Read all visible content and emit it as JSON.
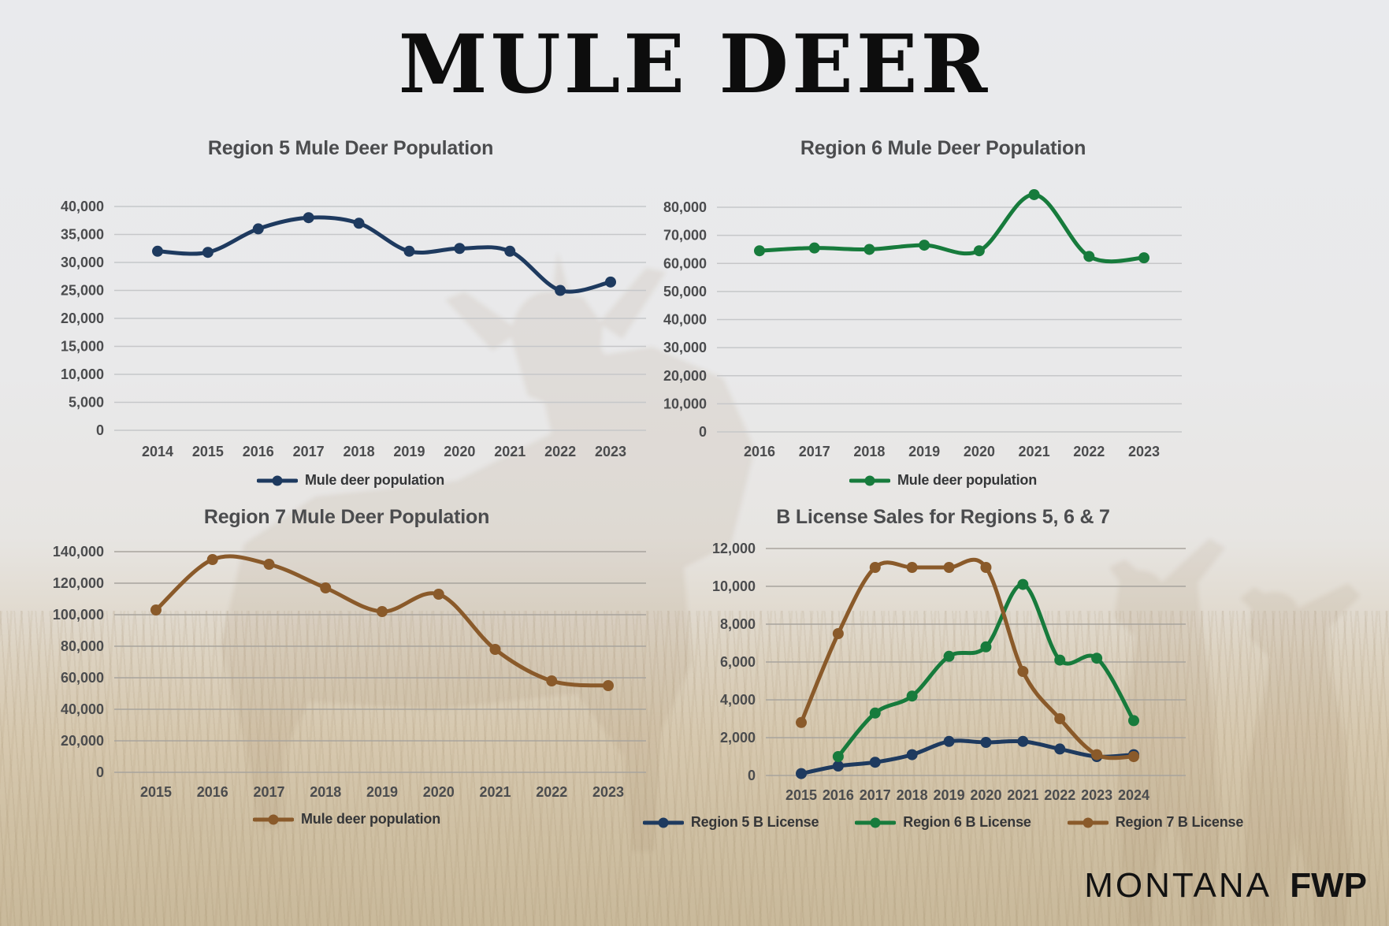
{
  "page": {
    "title": "MULE DEER",
    "brand": {
      "light": "MONTANA",
      "bold": "FWP"
    }
  },
  "colors": {
    "region5_navy": "#1e3a5f",
    "region6_green": "#177b3c",
    "region7_brown": "#8a5a2a",
    "chart_text_gray": "#4b4c4e",
    "grid_top": "#c6c7c9",
    "grid_bottom": "#a8a49d"
  },
  "chart_data": [
    {
      "id": "region5",
      "type": "line",
      "title": "Region 5 Mule Deer Population",
      "categories": [
        "2014",
        "2015",
        "2016",
        "2017",
        "2018",
        "2019",
        "2020",
        "2021",
        "2022",
        "2023"
      ],
      "series": [
        {
          "name": "Mule deer population",
          "color": "#1e3a5f",
          "values": [
            32000,
            31800,
            36000,
            38000,
            37000,
            32000,
            32500,
            32000,
            25000,
            26500
          ]
        }
      ],
      "ylim": [
        0,
        40000
      ],
      "ytick_step": 5000,
      "grid": true,
      "legend_position": "bottom"
    },
    {
      "id": "region6",
      "type": "line",
      "title": "Region 6 Mule Deer Population",
      "categories": [
        "2016",
        "2017",
        "2018",
        "2019",
        "2020",
        "2021",
        "2022",
        "2023"
      ],
      "series": [
        {
          "name": "Mule deer population",
          "color": "#177b3c",
          "values": [
            64500,
            65500,
            65000,
            66500,
            64500,
            84500,
            62500,
            62000
          ]
        }
      ],
      "ylim": [
        0,
        80000
      ],
      "ytick_step": 10000,
      "grid": true,
      "legend_position": "bottom"
    },
    {
      "id": "region7",
      "type": "line",
      "title": "Region 7 Mule Deer Population",
      "categories": [
        "2015",
        "2016",
        "2017",
        "2018",
        "2019",
        "2020",
        "2021",
        "2022",
        "2023"
      ],
      "series": [
        {
          "name": "Mule deer population",
          "color": "#8a5a2a",
          "values": [
            103000,
            135000,
            132000,
            117000,
            102000,
            113000,
            78000,
            58000,
            55000
          ]
        }
      ],
      "ylim": [
        0,
        140000
      ],
      "ytick_step": 20000,
      "grid": true,
      "legend_position": "bottom"
    },
    {
      "id": "blicense",
      "type": "line",
      "title": "B License Sales for Regions 5, 6 & 7",
      "categories": [
        "2015",
        "2016",
        "2017",
        "2018",
        "2019",
        "2020",
        "2021",
        "2022",
        "2023",
        "2024"
      ],
      "series": [
        {
          "name": "Region 5 B License",
          "color": "#1e3a5f",
          "values": [
            100,
            500,
            700,
            1100,
            1800,
            1750,
            1800,
            1400,
            1000,
            1100
          ]
        },
        {
          "name": "Region 6 B License",
          "color": "#177b3c",
          "values": [
            null,
            1000,
            3300,
            4200,
            6300,
            6800,
            10100,
            6100,
            6200,
            2900
          ]
        },
        {
          "name": "Region 7 B License",
          "color": "#8a5a2a",
          "values": [
            2800,
            7500,
            11000,
            11000,
            11000,
            11000,
            5500,
            3000,
            1100,
            1000
          ]
        }
      ],
      "ylim": [
        0,
        12000
      ],
      "ytick_step": 2000,
      "grid": true,
      "legend_position": "bottom"
    }
  ]
}
